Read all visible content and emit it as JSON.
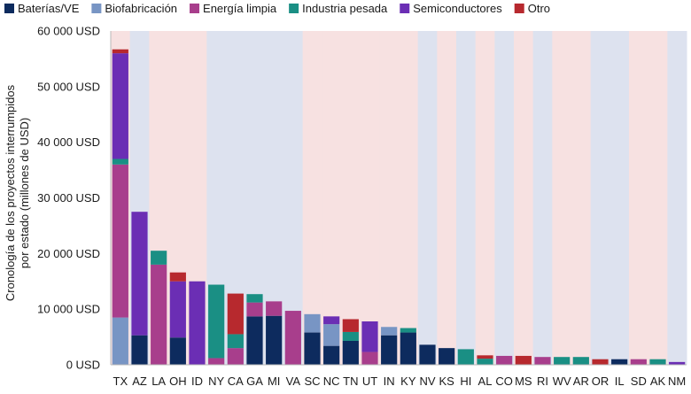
{
  "chart_data": {
    "type": "bar",
    "stacked": true,
    "title": "",
    "xlabel": "",
    "ylabel": "Cronología de los proyectos interrumpidos por estado (millones de USD)",
    "ylabel_lines": [
      "Cronología de los proyectos interrumpidos",
      "por estado (millones de USD)"
    ],
    "ylim": [
      0,
      60000
    ],
    "yticks": [
      0,
      10000,
      20000,
      30000,
      40000,
      50000,
      60000
    ],
    "ytick_labels": [
      "0 USD",
      "10 000 USD",
      "20 000 USD",
      "30 000 USD",
      "40 000 USD",
      "50 000 USD",
      "60 000 USD"
    ],
    "legend_position": "top-left",
    "categories": [
      "TX",
      "AZ",
      "LA",
      "OH",
      "ID",
      "NY",
      "CA",
      "GA",
      "MI",
      "VA",
      "SC",
      "NC",
      "TN",
      "UT",
      "IN",
      "KY",
      "NV",
      "KS",
      "HI",
      "AL",
      "CO",
      "MS",
      "RI",
      "WV",
      "AR",
      "OR",
      "IL",
      "SD",
      "AK",
      "NM"
    ],
    "band_party": [
      "red",
      "blue",
      "red",
      "red",
      "red",
      "blue",
      "blue",
      "blue",
      "blue",
      "blue",
      "red",
      "red",
      "red",
      "red",
      "red",
      "red",
      "blue",
      "red",
      "blue",
      "red",
      "blue",
      "red",
      "blue",
      "red",
      "red",
      "blue",
      "blue",
      "red",
      "red",
      "blue"
    ],
    "band_colors": {
      "red": "#f7e1e1",
      "blue": "#dde2ef"
    },
    "series": [
      {
        "name": "Baterías/VE",
        "color": "#0d2b5e",
        "values": [
          0,
          5300,
          0,
          4900,
          0,
          0,
          0,
          8700,
          8800,
          0,
          5800,
          3400,
          4300,
          0,
          5300,
          5800,
          3600,
          3000,
          0,
          0,
          0,
          0,
          0,
          0,
          0,
          0,
          1000,
          0,
          0,
          0
        ]
      },
      {
        "name": "Biofabricación",
        "color": "#7895c4",
        "values": [
          8500,
          0,
          0,
          0,
          0,
          0,
          0,
          0,
          0,
          0,
          3300,
          3900,
          0,
          0,
          1500,
          0,
          0,
          0,
          0,
          0,
          0,
          0,
          0,
          0,
          0,
          0,
          0,
          0,
          0,
          0
        ]
      },
      {
        "name": "Energía limpia",
        "color": "#a83e8c",
        "values": [
          27500,
          0,
          18000,
          0,
          0,
          1200,
          3000,
          2500,
          2600,
          9700,
          0,
          0,
          0,
          2300,
          0,
          0,
          0,
          0,
          0,
          0,
          1600,
          0,
          1400,
          0,
          0,
          0,
          0,
          1000,
          0,
          0
        ]
      },
      {
        "name": "Industria pesada",
        "color": "#1a8f84",
        "values": [
          1000,
          0,
          2500,
          0,
          0,
          13200,
          2500,
          1500,
          0,
          0,
          0,
          0,
          1600,
          0,
          0,
          800,
          0,
          0,
          2800,
          1100,
          0,
          0,
          0,
          1400,
          1400,
          0,
          0,
          0,
          1000,
          0
        ]
      },
      {
        "name": "Semiconductores",
        "color": "#6b2eb4",
        "values": [
          19000,
          22200,
          0,
          10100,
          15000,
          0,
          0,
          0,
          0,
          0,
          0,
          1400,
          0,
          5500,
          0,
          0,
          0,
          0,
          0,
          0,
          0,
          0,
          0,
          0,
          0,
          0,
          0,
          0,
          0,
          500
        ]
      },
      {
        "name": "Otro",
        "color": "#b7292e",
        "values": [
          700,
          0,
          0,
          1600,
          0,
          0,
          7300,
          0,
          0,
          0,
          0,
          0,
          2300,
          0,
          0,
          0,
          0,
          0,
          0,
          600,
          0,
          1600,
          0,
          0,
          0,
          1000,
          0,
          0,
          0,
          0
        ]
      }
    ]
  }
}
